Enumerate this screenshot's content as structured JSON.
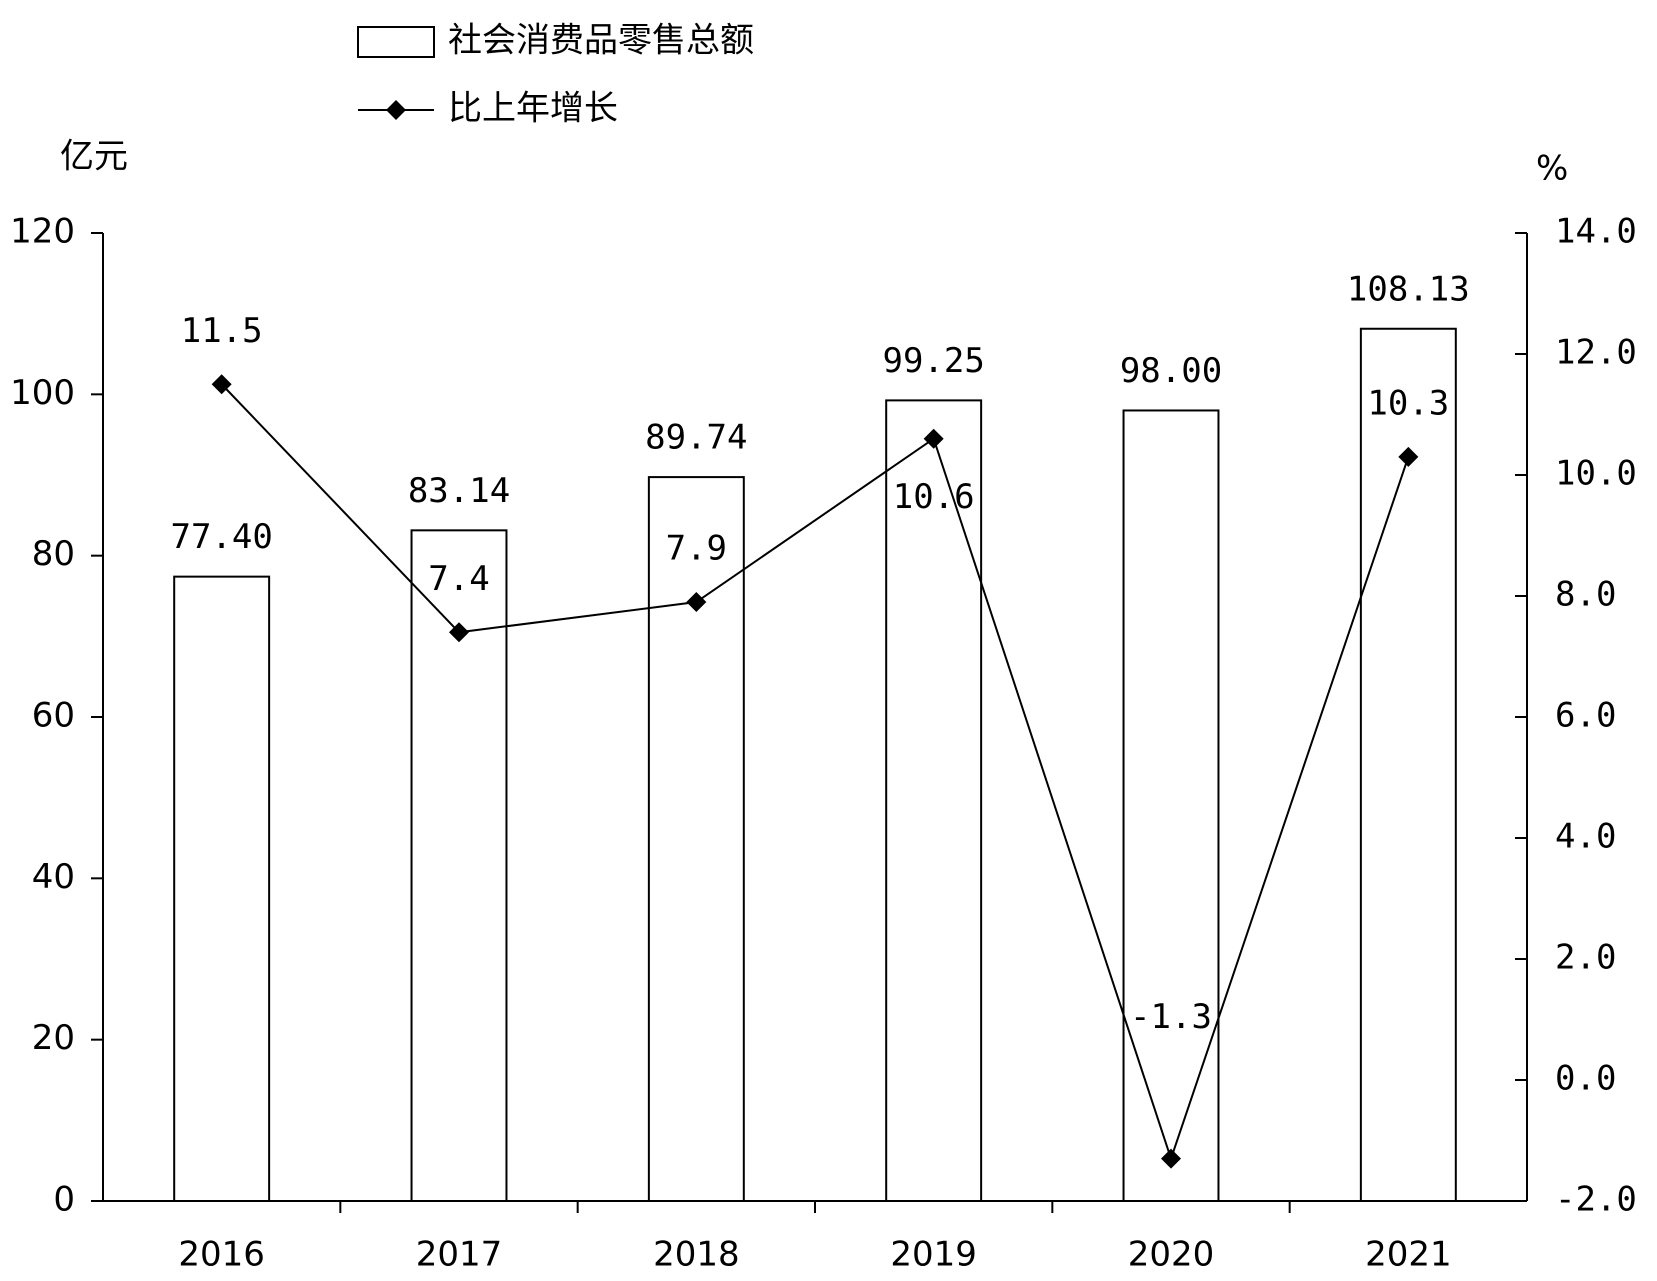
{
  "chart_data": {
    "type": "bar-line",
    "categories": [
      "2016",
      "2017",
      "2018",
      "2019",
      "2020",
      "2021"
    ],
    "series": [
      {
        "name": "社会消费品零售总额",
        "type": "bar",
        "color": "#ffffff",
        "values": [
          77.4,
          83.14,
          89.74,
          99.25,
          98.0,
          108.13
        ],
        "value_labels": [
          "77.40",
          "83.14",
          "89.74",
          "99.25",
          "98.00",
          "108.13"
        ]
      },
      {
        "name": "比上年增长",
        "type": "line",
        "axis": "y2",
        "color": "#000000",
        "values": [
          11.5,
          7.4,
          7.9,
          10.6,
          -1.3,
          10.3
        ]
      }
    ],
    "y_label": "亿元",
    "y2_label": "%",
    "ylim": [
      0,
      120
    ],
    "yticks": [
      0,
      20,
      40,
      60,
      80,
      100,
      120
    ],
    "y2lim": [
      -2,
      14
    ],
    "y2ticks": [
      {
        "value": -2,
        "label": "-2.0"
      },
      {
        "value": 0,
        "label": "0.0"
      },
      {
        "value": 2,
        "label": "2.0"
      },
      {
        "value": 4,
        "label": "4.0"
      },
      {
        "value": 6,
        "label": "6.0"
      },
      {
        "value": 8,
        "label": "8.0"
      },
      {
        "value": 10,
        "label": "10.0"
      },
      {
        "value": 12,
        "label": "12.0"
      },
      {
        "value": 14,
        "label": "14.0"
      }
    ],
    "grid": false
  }
}
